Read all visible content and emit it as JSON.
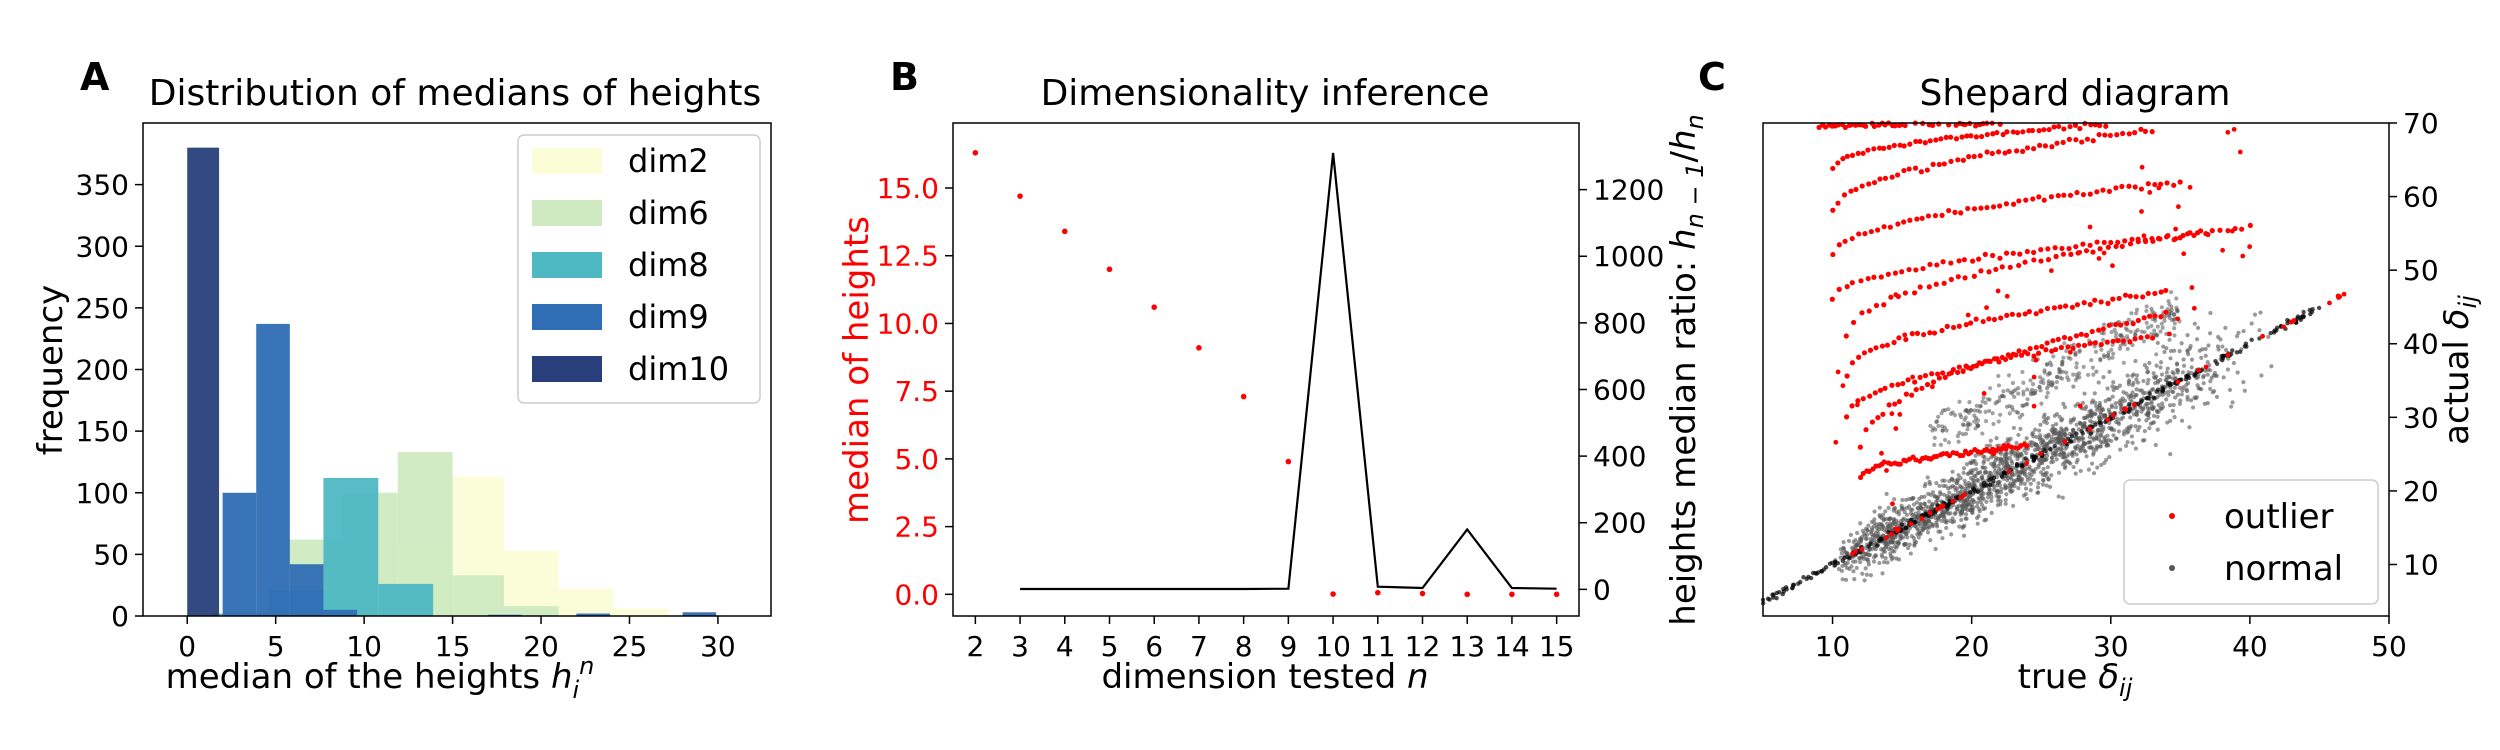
{
  "panels": {
    "a": {
      "letter": "A",
      "title": "Distribution of medians of heights",
      "ylabel": "frequency"
    },
    "b": {
      "letter": "B",
      "title": "Dimensionality inference",
      "ylabel_left": "median of heights"
    },
    "c": {
      "letter": "C",
      "title": "Shepard diagram"
    }
  },
  "colors": {
    "dim2": "#fbfdd6",
    "dim6": "#cfeac1",
    "dim8": "#4eb8c3",
    "dim9": "#2f6db4",
    "dim10": "#283f7b",
    "outlier": "#ff0000",
    "normal": "#555555",
    "ratio_line": "#000000",
    "medians_axis": "#ff0000"
  },
  "chart_data": [
    {
      "type": "bar",
      "title": "Distribution of medians of heights",
      "xlabel": "median of the heights h_i^n",
      "ylabel": "frequency",
      "xlim": [
        -2.5,
        33
      ],
      "ylim": [
        0,
        400
      ],
      "xticks": [
        0,
        5,
        10,
        15,
        20,
        25,
        30
      ],
      "yticks": [
        0,
        50,
        100,
        150,
        200,
        250,
        300,
        350
      ],
      "legend": {
        "position": "top-right",
        "entries": [
          "dim2",
          "dim6",
          "dim8",
          "dim9",
          "dim10"
        ]
      },
      "series": [
        {
          "name": "dim2",
          "bin_width": 3.1,
          "bins": [
            [
              8.8,
              19
            ],
            [
              11.9,
              56
            ],
            [
              14.8,
              113
            ],
            [
              17.9,
              53
            ],
            [
              21.0,
              22
            ],
            [
              24.1,
              6
            ],
            [
              27.2,
              1
            ]
          ]
        },
        {
          "name": "dim6",
          "bin_width": 3.1,
          "bins": [
            [
              2.6,
              4
            ],
            [
              5.7,
              62
            ],
            [
              8.8,
              100
            ],
            [
              11.9,
              133
            ],
            [
              14.8,
              33
            ],
            [
              17.9,
              8
            ]
          ]
        },
        {
          "name": "dim8",
          "bin_width": 3.1,
          "bins": [
            [
              1.5,
              2
            ],
            [
              4.6,
              21
            ],
            [
              7.7,
              112
            ],
            [
              10.8,
              26
            ]
          ]
        },
        {
          "name": "dim9",
          "bin_width": 1.9,
          "bins": [
            [
              2.0,
              100
            ],
            [
              3.9,
              237
            ],
            [
              5.8,
              42
            ],
            [
              7.7,
              5
            ],
            [
              17.0,
              1
            ],
            [
              22.0,
              2
            ],
            [
              28.0,
              3
            ]
          ]
        },
        {
          "name": "dim10",
          "bin_width": 1.8,
          "bins": [
            [
              0.0,
              380
            ]
          ]
        }
      ]
    },
    {
      "type": "scatter",
      "title": "Dimensionality inference",
      "xlabel": "dimension tested n",
      "ylabel": "median of heights",
      "ylabel_right": "heights median ratio: h_{n-1}/h_n",
      "xlim": [
        1.5,
        15.5
      ],
      "ylim": [
        -0.8,
        17.4
      ],
      "ylim_right": [
        -80,
        1400
      ],
      "xticks": [
        2,
        3,
        4,
        5,
        6,
        7,
        8,
        9,
        10,
        11,
        12,
        13,
        14,
        15
      ],
      "yticks": [
        0.0,
        2.5,
        5.0,
        7.5,
        10.0,
        12.5,
        15.0
      ],
      "yticks_right": [
        0,
        200,
        400,
        600,
        800,
        1000,
        1200
      ],
      "x": [
        2,
        3,
        4,
        5,
        6,
        7,
        8,
        9,
        10,
        11,
        12,
        13,
        14,
        15
      ],
      "medians": [
        16.3,
        14.7,
        13.4,
        12.0,
        10.6,
        9.1,
        7.3,
        4.9,
        0.01,
        0.06,
        0.03,
        0.0,
        0.0,
        0.0
      ],
      "ratio_x": [
        3,
        4,
        5,
        6,
        7,
        8,
        9,
        10,
        11,
        12,
        13,
        14,
        15
      ],
      "ratio": [
        1,
        1,
        1,
        1,
        1,
        1,
        2,
        1310,
        8,
        4,
        180,
        4,
        2
      ]
    },
    {
      "type": "scatter",
      "title": "Shepard diagram",
      "xlabel": "true δij",
      "ylabel": "actual δij",
      "xlim": [
        5,
        50
      ],
      "ylim": [
        3,
        70
      ],
      "xticks": [
        10,
        20,
        30,
        40,
        50
      ],
      "yticks": [
        10,
        20,
        30,
        40,
        50,
        60,
        70
      ],
      "legend": {
        "position": "bottom-right",
        "entries": [
          "outlier",
          "normal"
        ]
      },
      "series": [
        {
          "name": "normal",
          "trend": {
            "x_range": [
              5,
              45
            ],
            "y_eq_x": true,
            "spread_band": [
              [
                12,
                25
              ],
              [
                20,
                35
              ],
              [
                33,
                45
              ]
            ]
          }
        },
        {
          "name": "outlier",
          "arcs": [
            {
              "x0": 9,
              "x1": 22,
              "y0": 69.5,
              "y1": 70
            },
            {
              "x0": 10,
              "x1": 30,
              "y0": 64,
              "y1": 70
            },
            {
              "x0": 10,
              "x1": 33,
              "y0": 58,
              "y1": 69
            },
            {
              "x0": 10,
              "x1": 35,
              "y0": 52,
              "y1": 62
            },
            {
              "x0": 10,
              "x1": 37,
              "y0": 46,
              "y1": 55
            },
            {
              "x0": 11,
              "x1": 40,
              "y0": 41,
              "y1": 56
            },
            {
              "x0": 11,
              "x1": 34,
              "y0": 36,
              "y1": 47
            },
            {
              "x0": 11,
              "x1": 33,
              "y0": 30,
              "y1": 41
            },
            {
              "x0": 12,
              "x1": 34,
              "y0": 26,
              "y1": 44
            },
            {
              "x0": 12,
              "x1": 24,
              "y0": 22,
              "y1": 26
            }
          ],
          "diagonal_x_range": [
            10,
            47
          ]
        }
      ]
    }
  ]
}
